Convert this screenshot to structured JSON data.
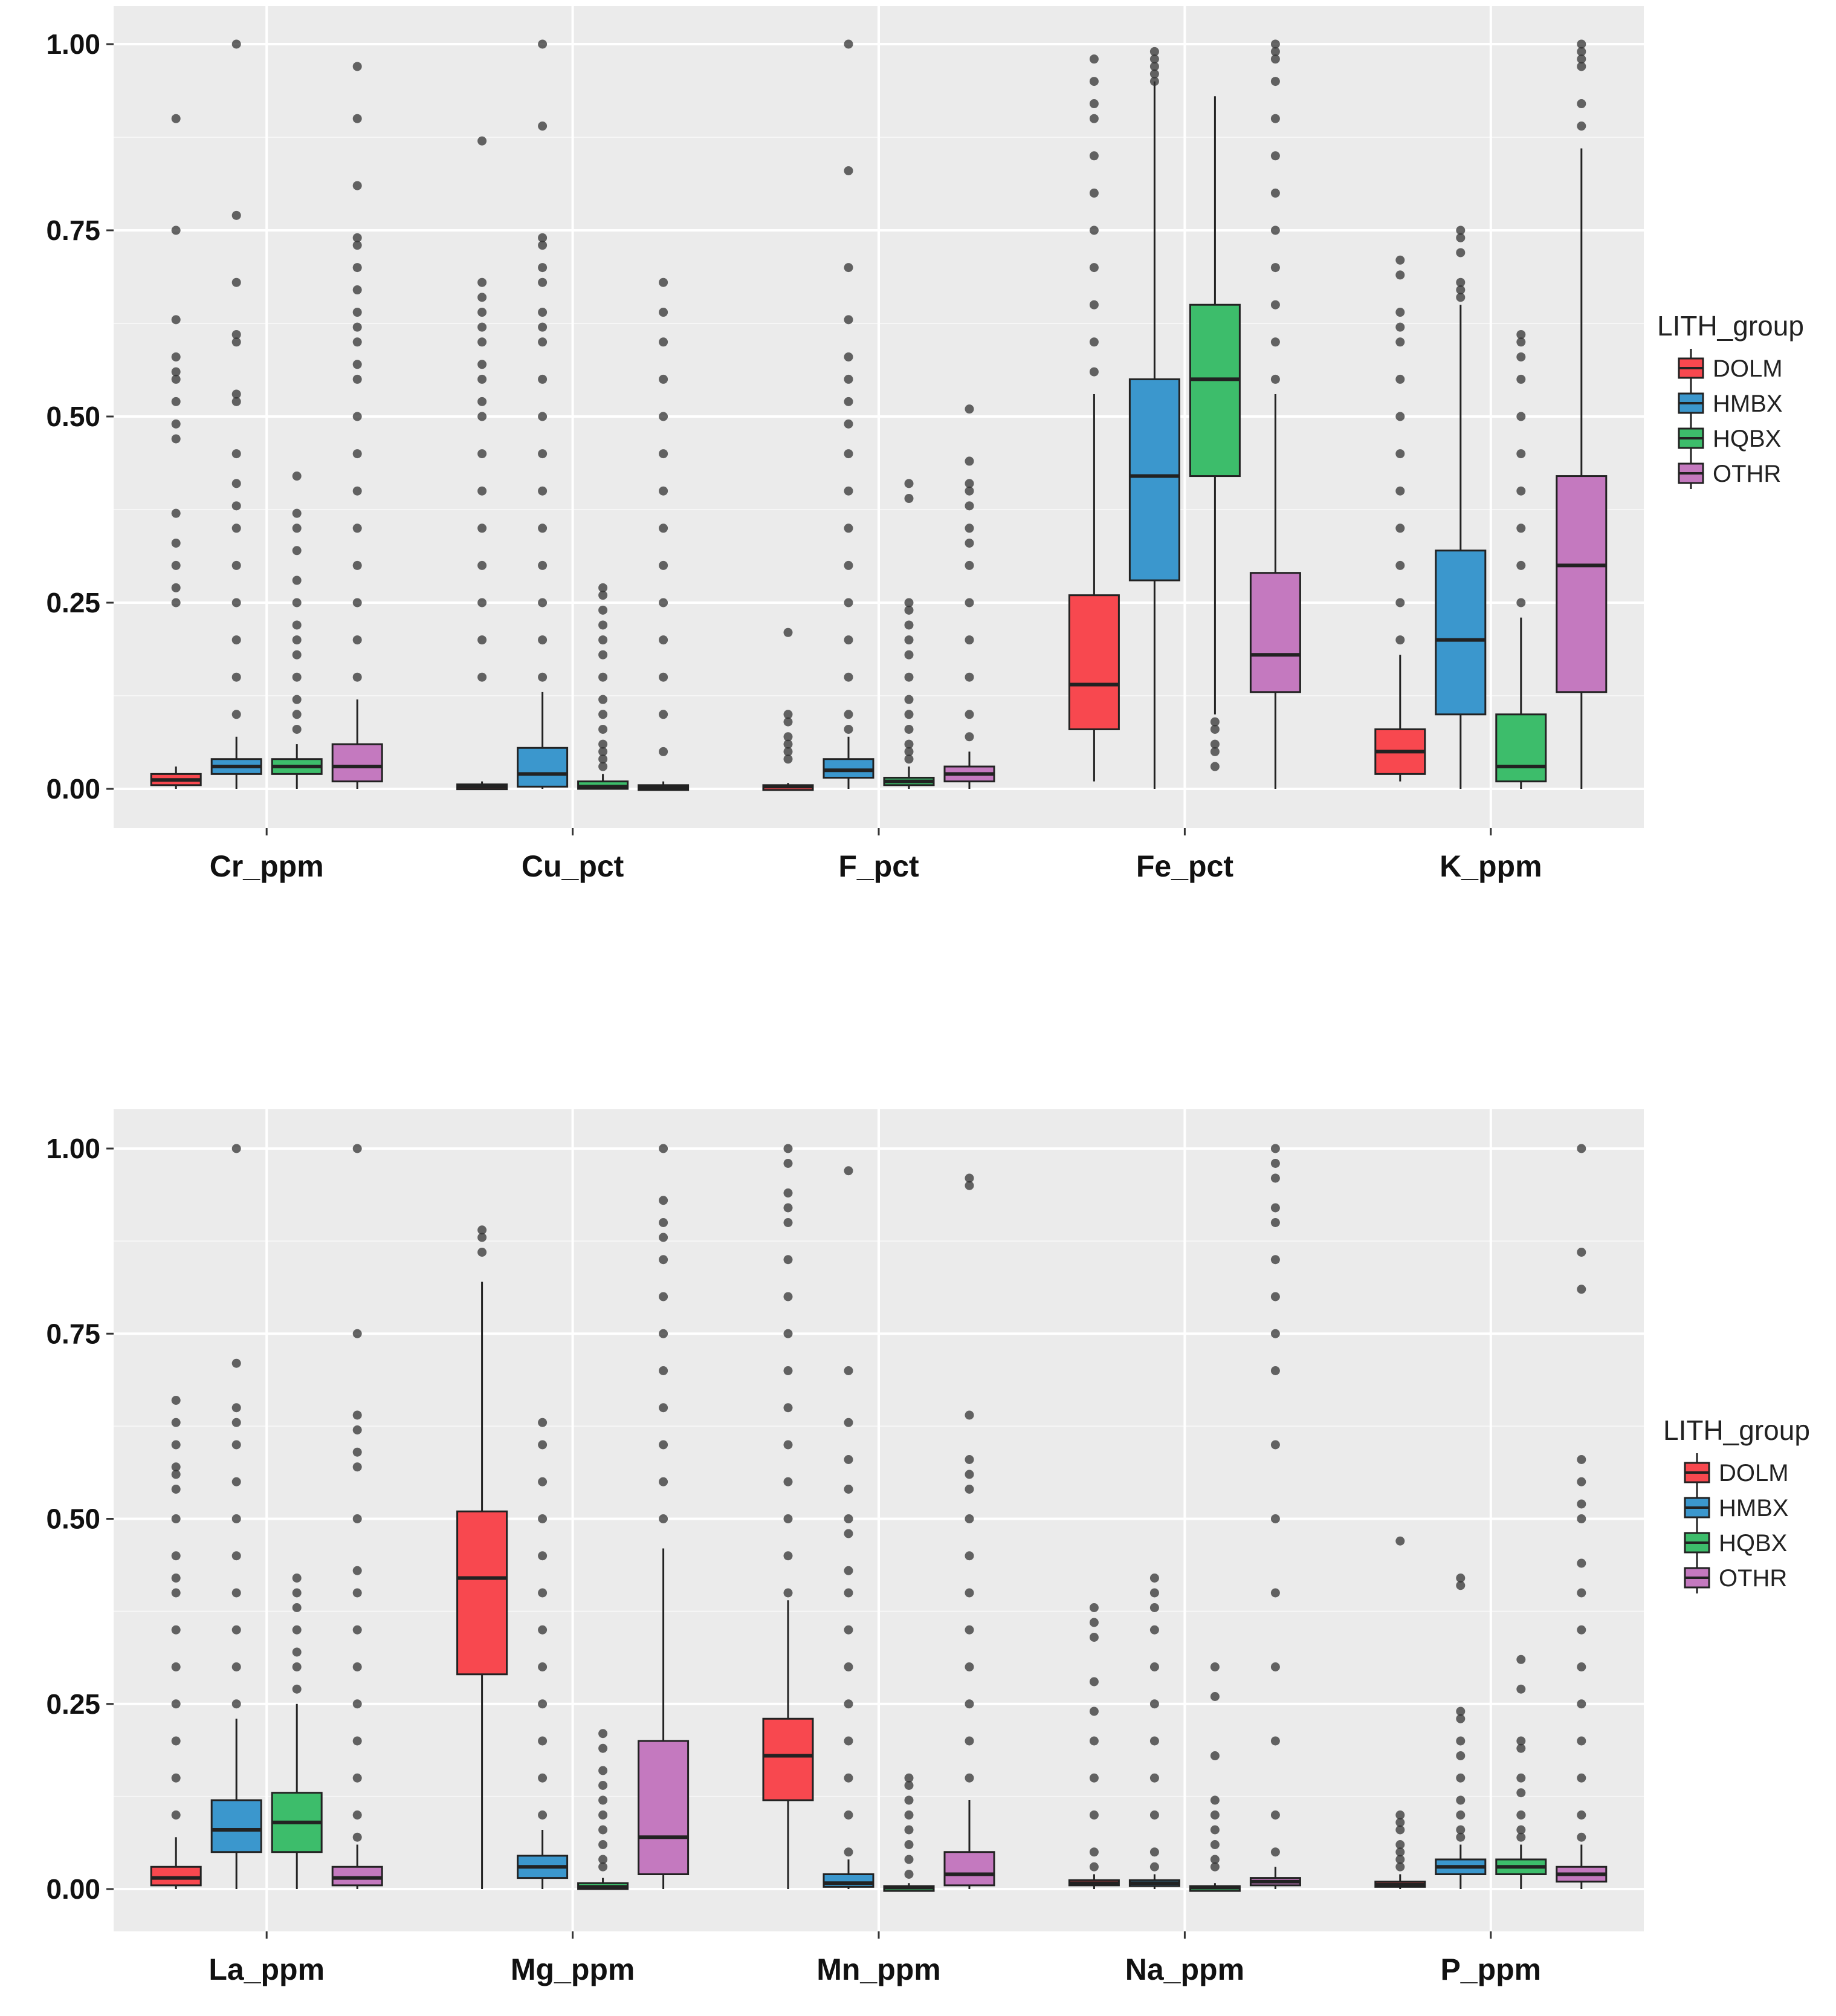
{
  "colors": {
    "DOLM": "#f8484f",
    "HMBX": "#3b97cd",
    "HQBX": "#3dbd6b",
    "OTHR": "#c479bf",
    "panel_bg": "#ebebeb",
    "grid": "#ffffff",
    "outlier": "#333333"
  },
  "chart_data": [
    {
      "type": "box",
      "panel": "top",
      "ylim": [
        -0.05,
        1.05
      ],
      "yticks": [
        "0.00",
        "0.25",
        "0.50",
        "0.75",
        "1.00"
      ],
      "grid": true,
      "legend": {
        "title": "LITH_group",
        "position": "right",
        "entries": [
          "DOLM",
          "HMBX",
          "HQBX",
          "OTHR"
        ]
      },
      "categories": [
        "Cr_ppm",
        "Cu_pct",
        "F_pct",
        "Fe_pct",
        "K_ppm"
      ],
      "series": [
        {
          "name": "DOLM",
          "boxes": [
            [
              0.0,
              0.005,
              0.012,
              0.02,
              0.03
            ],
            [
              0.0,
              0.0,
              0.003,
              0.006,
              0.01
            ],
            [
              0.0,
              0.0,
              0.003,
              0.005,
              0.008
            ],
            [
              0.01,
              0.08,
              0.14,
              0.26,
              0.53
            ],
            [
              0.01,
              0.02,
              0.05,
              0.08,
              0.18
            ]
          ],
          "outliers": [
            [
              0.9,
              0.75,
              0.63,
              0.58,
              0.56,
              0.55,
              0.52,
              0.49,
              0.47,
              0.37,
              0.33,
              0.3,
              0.27,
              0.25
            ],
            [
              0.87,
              0.68,
              0.66,
              0.64,
              0.62,
              0.6,
              0.57,
              0.55,
              0.52,
              0.5,
              0.45,
              0.4,
              0.35,
              0.3,
              0.25,
              0.2,
              0.15
            ],
            [
              0.21,
              0.1,
              0.09,
              0.07,
              0.06,
              0.05,
              0.04
            ],
            [
              0.98,
              0.95,
              0.92,
              0.9,
              0.85,
              0.8,
              0.75,
              0.7,
              0.65,
              0.6,
              0.56
            ],
            [
              0.71,
              0.69,
              0.64,
              0.62,
              0.6,
              0.55,
              0.5,
              0.45,
              0.4,
              0.35,
              0.3,
              0.25,
              0.2
            ]
          ]
        },
        {
          "name": "HMBX",
          "boxes": [
            [
              0.0,
              0.02,
              0.03,
              0.04,
              0.07
            ],
            [
              0.0,
              0.003,
              0.02,
              0.055,
              0.13
            ],
            [
              0.0,
              0.015,
              0.025,
              0.04,
              0.07
            ],
            [
              0.0,
              0.28,
              0.42,
              0.55,
              0.95
            ],
            [
              0.0,
              0.1,
              0.2,
              0.32,
              0.65
            ]
          ],
          "outliers": [
            [
              1.0,
              0.77,
              0.68,
              0.61,
              0.6,
              0.53,
              0.52,
              0.45,
              0.41,
              0.38,
              0.35,
              0.3,
              0.25,
              0.2,
              0.15,
              0.1
            ],
            [
              1.0,
              0.89,
              0.74,
              0.73,
              0.7,
              0.68,
              0.64,
              0.62,
              0.6,
              0.55,
              0.5,
              0.45,
              0.4,
              0.35,
              0.3,
              0.25,
              0.2,
              0.15
            ],
            [
              1.0,
              0.83,
              0.7,
              0.63,
              0.58,
              0.55,
              0.52,
              0.49,
              0.45,
              0.4,
              0.35,
              0.3,
              0.25,
              0.2,
              0.15,
              0.1,
              0.08
            ],
            [
              0.99,
              0.98,
              0.97,
              0.96,
              0.95
            ],
            [
              0.75,
              0.74,
              0.72,
              0.68,
              0.67,
              0.66
            ]
          ]
        },
        {
          "name": "HQBX",
          "boxes": [
            [
              0.0,
              0.02,
              0.03,
              0.04,
              0.06
            ],
            [
              0.0,
              0.0,
              0.003,
              0.01,
              0.02
            ],
            [
              0.0,
              0.005,
              0.01,
              0.015,
              0.03
            ],
            [
              0.1,
              0.42,
              0.55,
              0.65,
              0.93
            ],
            [
              0.0,
              0.01,
              0.03,
              0.1,
              0.23
            ]
          ],
          "outliers": [
            [
              0.42,
              0.37,
              0.35,
              0.32,
              0.28,
              0.25,
              0.22,
              0.2,
              0.18,
              0.15,
              0.12,
              0.1,
              0.08
            ],
            [
              0.27,
              0.26,
              0.24,
              0.22,
              0.2,
              0.18,
              0.15,
              0.12,
              0.1,
              0.08,
              0.06,
              0.05,
              0.04,
              0.03
            ],
            [
              0.41,
              0.39,
              0.25,
              0.24,
              0.22,
              0.2,
              0.18,
              0.15,
              0.12,
              0.1,
              0.08,
              0.06,
              0.05,
              0.04
            ],
            [
              0.09,
              0.08,
              0.06,
              0.05,
              0.03
            ],
            [
              0.61,
              0.6,
              0.58,
              0.55,
              0.5,
              0.45,
              0.4,
              0.35,
              0.3,
              0.25
            ]
          ]
        },
        {
          "name": "OTHR",
          "boxes": [
            [
              0.0,
              0.01,
              0.03,
              0.06,
              0.12
            ],
            [
              0.0,
              0.0,
              0.002,
              0.005,
              0.01
            ],
            [
              0.0,
              0.01,
              0.02,
              0.03,
              0.05
            ],
            [
              0.0,
              0.13,
              0.18,
              0.29,
              0.53
            ],
            [
              0.0,
              0.13,
              0.3,
              0.42,
              0.86
            ]
          ],
          "outliers": [
            [
              0.97,
              0.9,
              0.81,
              0.74,
              0.73,
              0.7,
              0.67,
              0.64,
              0.62,
              0.6,
              0.57,
              0.55,
              0.5,
              0.45,
              0.4,
              0.35,
              0.3,
              0.25,
              0.2,
              0.15
            ],
            [
              0.68,
              0.64,
              0.6,
              0.55,
              0.5,
              0.45,
              0.4,
              0.35,
              0.3,
              0.25,
              0.2,
              0.15,
              0.1,
              0.05
            ],
            [
              0.51,
              0.44,
              0.41,
              0.4,
              0.38,
              0.35,
              0.33,
              0.3,
              0.25,
              0.2,
              0.15,
              0.1,
              0.07
            ],
            [
              1.0,
              0.99,
              0.98,
              0.95,
              0.9,
              0.85,
              0.8,
              0.75,
              0.7,
              0.65,
              0.6,
              0.55
            ],
            [
              1.0,
              0.99,
              0.98,
              0.97,
              0.92,
              0.89
            ]
          ]
        }
      ]
    },
    {
      "type": "box",
      "panel": "bottom",
      "ylim": [
        -0.05,
        1.05
      ],
      "yticks": [
        "0.00",
        "0.25",
        "0.50",
        "0.75",
        "1.00"
      ],
      "grid": true,
      "legend": {
        "title": "LITH_group",
        "position": "right",
        "entries": [
          "DOLM",
          "HMBX",
          "HQBX",
          "OTHR"
        ]
      },
      "categories": [
        "La_ppm",
        "Mg_ppm",
        "Mn_ppm",
        "Na_ppm",
        "P_ppm"
      ],
      "series": [
        {
          "name": "DOLM",
          "boxes": [
            [
              0.0,
              0.005,
              0.015,
              0.03,
              0.07
            ],
            [
              0.0,
              0.29,
              0.42,
              0.51,
              0.82
            ],
            [
              0.0,
              0.12,
              0.18,
              0.23,
              0.39
            ],
            [
              0.0,
              0.005,
              0.008,
              0.012,
              0.02
            ],
            [
              0.0,
              0.003,
              0.006,
              0.01,
              0.02
            ]
          ],
          "outliers": [
            [
              0.66,
              0.63,
              0.6,
              0.57,
              0.56,
              0.54,
              0.5,
              0.45,
              0.42,
              0.4,
              0.35,
              0.3,
              0.25,
              0.2,
              0.15,
              0.1
            ],
            [
              0.89,
              0.88,
              0.86
            ],
            [
              1.0,
              0.98,
              0.94,
              0.92,
              0.9,
              0.85,
              0.8,
              0.75,
              0.7,
              0.65,
              0.6,
              0.55,
              0.5,
              0.45,
              0.4
            ],
            [
              0.38,
              0.36,
              0.34,
              0.28,
              0.24,
              0.2,
              0.15,
              0.1,
              0.05,
              0.03
            ],
            [
              0.47,
              0.1,
              0.09,
              0.08,
              0.06,
              0.05,
              0.04,
              0.03
            ]
          ]
        },
        {
          "name": "HMBX",
          "boxes": [
            [
              0.0,
              0.05,
              0.08,
              0.12,
              0.23
            ],
            [
              0.0,
              0.015,
              0.03,
              0.045,
              0.08
            ],
            [
              0.0,
              0.003,
              0.008,
              0.02,
              0.04
            ],
            [
              0.0,
              0.004,
              0.008,
              0.012,
              0.02
            ],
            [
              0.0,
              0.02,
              0.03,
              0.04,
              0.06
            ]
          ],
          "outliers": [
            [
              1.0,
              0.71,
              0.65,
              0.63,
              0.6,
              0.55,
              0.5,
              0.45,
              0.4,
              0.35,
              0.3,
              0.25
            ],
            [
              0.63,
              0.6,
              0.55,
              0.5,
              0.45,
              0.4,
              0.35,
              0.3,
              0.25,
              0.2,
              0.15,
              0.1
            ],
            [
              0.97,
              0.7,
              0.63,
              0.58,
              0.54,
              0.5,
              0.48,
              0.43,
              0.4,
              0.35,
              0.3,
              0.25,
              0.2,
              0.15,
              0.1,
              0.05
            ],
            [
              0.42,
              0.4,
              0.38,
              0.35,
              0.3,
              0.25,
              0.2,
              0.15,
              0.1,
              0.05,
              0.03
            ],
            [
              0.42,
              0.41,
              0.24,
              0.23,
              0.2,
              0.18,
              0.15,
              0.12,
              0.1,
              0.08,
              0.07
            ]
          ]
        },
        {
          "name": "HQBX",
          "boxes": [
            [
              0.0,
              0.05,
              0.09,
              0.13,
              0.25
            ],
            [
              0.0,
              0.0,
              0.003,
              0.008,
              0.015
            ],
            [
              0.0,
              0.0,
              0.002,
              0.004,
              0.008
            ],
            [
              0.0,
              0.0,
              0.002,
              0.004,
              0.008
            ],
            [
              0.0,
              0.02,
              0.03,
              0.04,
              0.06
            ]
          ],
          "outliers": [
            [
              0.42,
              0.4,
              0.38,
              0.35,
              0.32,
              0.3,
              0.27
            ],
            [
              0.21,
              0.19,
              0.16,
              0.14,
              0.12,
              0.1,
              0.08,
              0.06,
              0.04,
              0.03
            ],
            [
              0.15,
              0.14,
              0.12,
              0.1,
              0.08,
              0.06,
              0.04,
              0.02
            ],
            [
              0.3,
              0.26,
              0.18,
              0.12,
              0.1,
              0.08,
              0.06,
              0.04,
              0.03
            ],
            [
              0.31,
              0.27,
              0.2,
              0.19,
              0.15,
              0.13,
              0.1,
              0.08,
              0.07
            ]
          ]
        },
        {
          "name": "OTHR",
          "boxes": [
            [
              0.0,
              0.005,
              0.015,
              0.03,
              0.06
            ],
            [
              0.0,
              0.02,
              0.07,
              0.2,
              0.46
            ],
            [
              0.0,
              0.005,
              0.02,
              0.05,
              0.12
            ],
            [
              0.0,
              0.005,
              0.01,
              0.015,
              0.03
            ],
            [
              0.0,
              0.01,
              0.02,
              0.03,
              0.06
            ]
          ],
          "outliers": [
            [
              1.0,
              0.75,
              0.64,
              0.62,
              0.59,
              0.57,
              0.5,
              0.43,
              0.4,
              0.35,
              0.3,
              0.25,
              0.2,
              0.15,
              0.1,
              0.07
            ],
            [
              1.0,
              0.93,
              0.9,
              0.88,
              0.85,
              0.8,
              0.75,
              0.7,
              0.65,
              0.6,
              0.55,
              0.5
            ],
            [
              0.96,
              0.95,
              0.64,
              0.58,
              0.56,
              0.54,
              0.5,
              0.45,
              0.4,
              0.35,
              0.3,
              0.25,
              0.2,
              0.15
            ],
            [
              1.0,
              0.98,
              0.96,
              0.92,
              0.9,
              0.85,
              0.8,
              0.75,
              0.7,
              0.6,
              0.5,
              0.4,
              0.3,
              0.2,
              0.1,
              0.05
            ],
            [
              1.0,
              0.86,
              0.81,
              0.58,
              0.55,
              0.52,
              0.5,
              0.44,
              0.4,
              0.35,
              0.3,
              0.25,
              0.2,
              0.15,
              0.1,
              0.07
            ]
          ]
        }
      ]
    }
  ]
}
